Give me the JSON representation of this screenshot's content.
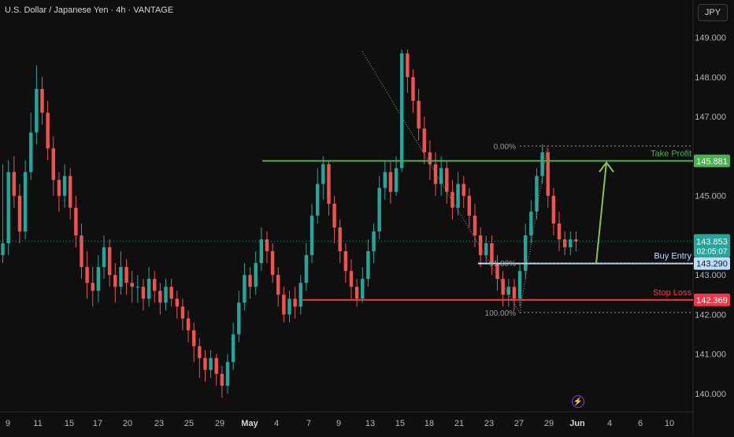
{
  "header": {
    "title": "U.S. Dollar / Japanese Yen · 4h · VANTAGE",
    "currency_button": "JPY"
  },
  "colors": {
    "background": "#0f0f0f",
    "up": "#26a69a",
    "down": "#ef5350",
    "take_profit": "#4caf50",
    "entry": "#bbdefb",
    "stop_loss": "#f23645",
    "arrow": "#8bc34a"
  },
  "chart_data": {
    "type": "candlestick",
    "symbol": "USDJPY",
    "timeframe": "4h",
    "ylim": [
      139.7,
      149.75
    ],
    "y_ticks": [
      140.0,
      141.0,
      142.0,
      143.0,
      145.0,
      147.0,
      148.0,
      149.0
    ],
    "y_tick_labels": [
      "140.000",
      "141.000",
      "142.000",
      "143.000",
      "145.000",
      "147.000",
      "148.000",
      "149.000"
    ],
    "x_ticks": [
      "9",
      "11",
      "15",
      "17",
      "20",
      "23",
      "25",
      "29",
      "May",
      "4",
      "7",
      "9",
      "13",
      "15",
      "18",
      "21",
      "23",
      "27",
      "29",
      "Jun",
      "4",
      "6",
      "10"
    ],
    "current_price": {
      "value": 143.853,
      "label": "143.853",
      "countdown": "02:05:07"
    },
    "levels": [
      {
        "name": "Take Profit",
        "value": 145.881,
        "label": "145.881"
      },
      {
        "name": "Buy Entry",
        "value": 143.29,
        "label": "143.290"
      },
      {
        "name": "Stop Loss",
        "value": 142.369,
        "label": "142.369"
      }
    ],
    "fib_labels": [
      "0.00%",
      "61.80%",
      "100.00%"
    ],
    "fib_levels": [
      {
        "label": "0.00%",
        "value": 146.26
      },
      {
        "label": "61.80%",
        "value": 143.3
      },
      {
        "label": "100.00%",
        "value": 142.05
      }
    ],
    "grid": false,
    "candles": [
      [
        143.5,
        143.8,
        145.8,
        143.3
      ],
      [
        143.8,
        145.6,
        145.9,
        143.5
      ],
      [
        145.6,
        145.0,
        146.0,
        144.7
      ],
      [
        145.0,
        144.1,
        145.3,
        143.8
      ],
      [
        144.1,
        145.6,
        145.9,
        143.9
      ],
      [
        145.6,
        146.6,
        147.1,
        145.4
      ],
      [
        146.6,
        147.7,
        148.3,
        146.3
      ],
      [
        147.7,
        147.1,
        148.0,
        146.8
      ],
      [
        147.1,
        146.2,
        147.4,
        145.9
      ],
      [
        146.2,
        145.4,
        146.5,
        145.0
      ],
      [
        145.4,
        145.0,
        145.6,
        144.6
      ],
      [
        145.0,
        145.5,
        145.8,
        144.7
      ],
      [
        145.5,
        144.7,
        145.7,
        144.4
      ],
      [
        144.7,
        144.0,
        145.0,
        143.7
      ],
      [
        144.0,
        143.2,
        144.3,
        142.9
      ],
      [
        143.2,
        142.8,
        143.6,
        142.4
      ],
      [
        142.8,
        142.6,
        143.2,
        142.2
      ],
      [
        142.6,
        143.2,
        143.5,
        142.3
      ],
      [
        143.2,
        143.7,
        144.0,
        142.9
      ],
      [
        143.7,
        143.0,
        143.9,
        142.7
      ],
      [
        143.0,
        142.7,
        143.3,
        142.3
      ],
      [
        142.7,
        143.2,
        143.6,
        142.5
      ],
      [
        143.2,
        142.8,
        143.4,
        142.5
      ],
      [
        142.8,
        142.7,
        143.1,
        142.3
      ],
      [
        142.7,
        142.7,
        143.0,
        142.3
      ],
      [
        142.7,
        142.4,
        142.9,
        142.1
      ],
      [
        142.4,
        142.9,
        143.2,
        142.2
      ],
      [
        142.9,
        142.6,
        143.1,
        142.3
      ],
      [
        142.6,
        142.3,
        142.8,
        142.0
      ],
      [
        142.3,
        142.7,
        142.9,
        142.1
      ],
      [
        142.7,
        142.4,
        142.9,
        142.2
      ],
      [
        142.4,
        142.2,
        142.6,
        141.9
      ],
      [
        142.2,
        141.9,
        142.4,
        141.6
      ],
      [
        141.9,
        141.6,
        142.1,
        141.3
      ],
      [
        141.6,
        141.2,
        141.8,
        140.8
      ],
      [
        141.2,
        140.9,
        141.4,
        140.4
      ],
      [
        140.9,
        140.6,
        141.1,
        140.3
      ],
      [
        140.6,
        140.9,
        141.1,
        140.4
      ],
      [
        140.9,
        140.5,
        141.0,
        140.2
      ],
      [
        140.5,
        140.2,
        140.7,
        139.9
      ],
      [
        140.2,
        140.8,
        141.0,
        140.0
      ],
      [
        140.8,
        141.5,
        141.8,
        140.6
      ],
      [
        141.5,
        142.3,
        142.6,
        141.3
      ],
      [
        142.3,
        143.0,
        143.3,
        142.1
      ],
      [
        143.0,
        142.7,
        143.2,
        142.4
      ],
      [
        142.7,
        143.3,
        143.6,
        142.5
      ],
      [
        143.3,
        143.9,
        144.2,
        143.1
      ],
      [
        143.9,
        143.6,
        144.1,
        143.3
      ],
      [
        143.6,
        143.0,
        143.8,
        142.8
      ],
      [
        143.0,
        142.5,
        143.2,
        142.2
      ],
      [
        142.5,
        142.0,
        142.7,
        141.8
      ],
      [
        142.0,
        142.4,
        142.6,
        141.8
      ],
      [
        142.4,
        142.2,
        142.7,
        141.9
      ],
      [
        142.2,
        142.8,
        143.0,
        142.0
      ],
      [
        142.8,
        143.5,
        143.8,
        142.6
      ],
      [
        143.5,
        144.5,
        144.8,
        143.3
      ],
      [
        144.5,
        145.3,
        145.7,
        144.3
      ],
      [
        145.3,
        145.8,
        146.0,
        144.9
      ],
      [
        145.8,
        144.8,
        145.9,
        144.5
      ],
      [
        144.8,
        144.2,
        145.0,
        143.8
      ],
      [
        144.2,
        143.6,
        144.4,
        143.3
      ],
      [
        143.6,
        143.1,
        143.8,
        142.8
      ],
      [
        143.1,
        142.7,
        143.4,
        142.4
      ],
      [
        142.7,
        142.4,
        142.9,
        142.2
      ],
      [
        142.4,
        142.9,
        143.2,
        142.3
      ],
      [
        142.9,
        143.6,
        143.9,
        142.7
      ],
      [
        143.6,
        144.1,
        144.3,
        143.3
      ],
      [
        144.1,
        145.2,
        145.5,
        143.9
      ],
      [
        145.2,
        145.6,
        145.9,
        144.9
      ],
      [
        145.6,
        145.1,
        145.9,
        144.8
      ],
      [
        145.1,
        145.7,
        146.0,
        145.0
      ],
      [
        145.7,
        148.6,
        148.7,
        145.6
      ],
      [
        148.6,
        148.0,
        148.7,
        147.6
      ],
      [
        148.0,
        147.4,
        148.2,
        147.1
      ],
      [
        147.4,
        146.7,
        147.7,
        146.4
      ],
      [
        146.7,
        146.1,
        147.0,
        145.8
      ],
      [
        146.1,
        145.8,
        146.4,
        145.4
      ],
      [
        145.8,
        145.3,
        146.1,
        145.0
      ],
      [
        145.3,
        145.7,
        146.0,
        145.0
      ],
      [
        145.7,
        145.1,
        145.9,
        144.8
      ],
      [
        145.1,
        144.7,
        145.4,
        144.4
      ],
      [
        144.7,
        145.3,
        145.6,
        144.5
      ],
      [
        145.3,
        145.0,
        145.5,
        144.7
      ],
      [
        145.0,
        144.5,
        145.2,
        144.2
      ],
      [
        144.5,
        144.0,
        144.8,
        143.7
      ],
      [
        144.0,
        143.5,
        144.2,
        143.2
      ],
      [
        143.5,
        143.8,
        144.0,
        143.3
      ],
      [
        143.8,
        143.3,
        144.0,
        143.0
      ],
      [
        143.3,
        142.9,
        143.5,
        142.6
      ],
      [
        142.9,
        142.5,
        143.1,
        142.2
      ],
      [
        142.5,
        142.7,
        142.9,
        142.2
      ],
      [
        142.7,
        142.4,
        142.9,
        142.1
      ],
      [
        142.4,
        143.1,
        143.3,
        142.2
      ],
      [
        143.1,
        144.0,
        144.3,
        142.9
      ],
      [
        144.0,
        144.6,
        144.9,
        143.8
      ],
      [
        144.6,
        145.5,
        145.7,
        144.4
      ],
      [
        145.5,
        146.1,
        146.3,
        145.3
      ],
      [
        146.1,
        145.0,
        146.2,
        144.7
      ],
      [
        145.0,
        144.3,
        145.2,
        144.0
      ],
      [
        144.3,
        143.9,
        144.6,
        143.6
      ],
      [
        143.9,
        143.7,
        144.1,
        143.5
      ],
      [
        143.7,
        143.9,
        144.1,
        143.5
      ],
      [
        143.9,
        143.85,
        144.1,
        143.6
      ]
    ]
  },
  "annotation_icon": "flash-icon"
}
